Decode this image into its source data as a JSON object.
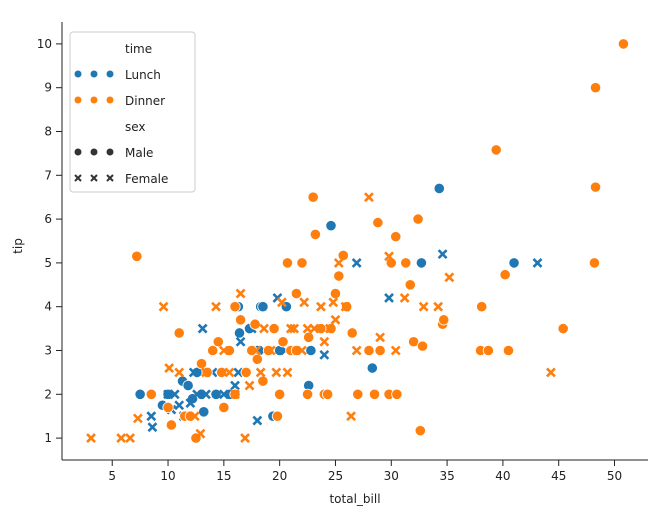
{
  "chart_data": {
    "type": "scatter",
    "xlabel": "total_bill",
    "ylabel": "tip",
    "xlim": [
      0.5,
      53
    ],
    "ylim": [
      0.5,
      10.5
    ],
    "xticks": [
      5,
      10,
      15,
      20,
      25,
      30,
      35,
      40,
      45,
      50
    ],
    "yticks": [
      1,
      2,
      3,
      4,
      5,
      6,
      7,
      8,
      9,
      10
    ],
    "grid": false,
    "legend": {
      "placement": "top-left",
      "hue_title": "time",
      "style_title": "sex",
      "hue_entries": [
        {
          "label": "Lunch",
          "color": "#1f77b4"
        },
        {
          "label": "Dinner",
          "color": "#ff7f0e"
        }
      ],
      "style_entries": [
        {
          "label": "Male",
          "marker": "circle",
          "color": "#333333"
        },
        {
          "label": "Female",
          "marker": "x",
          "color": "#333333"
        }
      ]
    },
    "colors": {
      "Lunch": "#1f77b4",
      "Dinner": "#ff7f0e"
    },
    "series": [
      {
        "name": "Lunch, Male",
        "time": "Lunch",
        "sex": "Male",
        "marker": "circle",
        "points": [
          [
            7.5,
            2.0
          ],
          [
            9.5,
            1.75
          ],
          [
            11.3,
            2.3
          ],
          [
            11.8,
            2.2
          ],
          [
            12.2,
            1.9
          ],
          [
            12.6,
            2.5
          ],
          [
            13.2,
            1.6
          ],
          [
            14.3,
            2.0
          ],
          [
            16.3,
            4.0
          ],
          [
            16.4,
            3.4
          ],
          [
            17.3,
            3.5
          ],
          [
            18.3,
            4.0
          ],
          [
            18.5,
            4.0
          ],
          [
            19.4,
            1.5
          ],
          [
            20.0,
            3.0
          ],
          [
            20.6,
            4.0
          ],
          [
            22.6,
            2.2
          ],
          [
            22.8,
            3.0
          ],
          [
            24.6,
            5.85
          ],
          [
            28.3,
            2.6
          ],
          [
            32.7,
            5.0
          ],
          [
            34.3,
            6.7
          ],
          [
            41.0,
            5.0
          ],
          [
            10.0,
            2.0
          ],
          [
            13.0,
            2.0
          ],
          [
            15.5,
            2.0
          ],
          [
            18.0,
            3.0
          ]
        ]
      },
      {
        "name": "Lunch, Female",
        "time": "Lunch",
        "sex": "Female",
        "marker": "x",
        "points": [
          [
            8.5,
            1.5
          ],
          [
            8.6,
            1.25
          ],
          [
            10.0,
            2.0
          ],
          [
            10.3,
            1.65
          ],
          [
            10.6,
            2.0
          ],
          [
            11.0,
            1.75
          ],
          [
            11.4,
            1.5
          ],
          [
            12.0,
            1.8
          ],
          [
            12.6,
            2.0
          ],
          [
            13.1,
            3.5
          ],
          [
            13.4,
            2.0
          ],
          [
            14.0,
            2.5
          ],
          [
            15.0,
            2.0
          ],
          [
            16.0,
            2.2
          ],
          [
            16.3,
            2.5
          ],
          [
            16.5,
            3.2
          ],
          [
            17.5,
            3.5
          ],
          [
            18.0,
            1.4
          ],
          [
            19.8,
            4.2
          ],
          [
            20.5,
            3.0
          ],
          [
            24.0,
            2.9
          ],
          [
            26.9,
            5.0
          ],
          [
            29.8,
            4.2
          ],
          [
            34.6,
            5.2
          ],
          [
            43.1,
            5.0
          ],
          [
            12.3,
            2.5
          ],
          [
            18.6,
            3.0
          ]
        ]
      },
      {
        "name": "Dinner, Male",
        "time": "Dinner",
        "sex": "Male",
        "marker": "circle",
        "points": [
          [
            7.2,
            5.15
          ],
          [
            8.5,
            2.0
          ],
          [
            10.0,
            1.7
          ],
          [
            10.3,
            1.3
          ],
          [
            11.0,
            3.4
          ],
          [
            11.5,
            1.5
          ],
          [
            12.0,
            1.5
          ],
          [
            12.5,
            1.0
          ],
          [
            13.0,
            2.7
          ],
          [
            13.5,
            2.5
          ],
          [
            14.0,
            3.0
          ],
          [
            14.5,
            3.2
          ],
          [
            15.0,
            1.7
          ],
          [
            15.5,
            3.0
          ],
          [
            16.0,
            2.0
          ],
          [
            16.5,
            3.7
          ],
          [
            17.0,
            2.5
          ],
          [
            17.5,
            3.0
          ],
          [
            18.0,
            2.8
          ],
          [
            18.5,
            2.3
          ],
          [
            19.0,
            3.0
          ],
          [
            19.5,
            3.5
          ],
          [
            20.0,
            2.0
          ],
          [
            20.3,
            3.2
          ],
          [
            20.7,
            5.0
          ],
          [
            21.0,
            3.0
          ],
          [
            21.5,
            4.3
          ],
          [
            22.0,
            5.0
          ],
          [
            22.5,
            2.0
          ],
          [
            23.0,
            6.5
          ],
          [
            23.2,
            5.65
          ],
          [
            23.7,
            3.5
          ],
          [
            24.0,
            2.0
          ],
          [
            24.3,
            2.0
          ],
          [
            24.6,
            3.5
          ],
          [
            25.0,
            4.3
          ],
          [
            25.3,
            4.7
          ],
          [
            25.7,
            5.17
          ],
          [
            26.5,
            3.4
          ],
          [
            27.0,
            2.0
          ],
          [
            28.0,
            3.0
          ],
          [
            28.5,
            2.0
          ],
          [
            28.8,
            5.92
          ],
          [
            29.0,
            3.0
          ],
          [
            29.8,
            2.0
          ],
          [
            30.0,
            5.0
          ],
          [
            30.5,
            2.0
          ],
          [
            30.4,
            5.6
          ],
          [
            31.3,
            5.0
          ],
          [
            31.7,
            4.5
          ],
          [
            32.0,
            3.2
          ],
          [
            32.4,
            6.0
          ],
          [
            32.6,
            1.17
          ],
          [
            32.8,
            3.1
          ],
          [
            34.6,
            3.6
          ],
          [
            34.7,
            3.7
          ],
          [
            38.0,
            3.0
          ],
          [
            38.1,
            4.0
          ],
          [
            38.7,
            3.0
          ],
          [
            39.4,
            7.58
          ],
          [
            40.2,
            4.73
          ],
          [
            40.5,
            3.0
          ],
          [
            45.4,
            3.5
          ],
          [
            48.2,
            5.0
          ],
          [
            48.3,
            6.73
          ],
          [
            48.3,
            9.0
          ],
          [
            50.8,
            10.0
          ],
          [
            16.0,
            4.0
          ],
          [
            19.8,
            1.5
          ],
          [
            21.5,
            3.0
          ],
          [
            22.6,
            3.3
          ],
          [
            17.8,
            3.6
          ],
          [
            14.8,
            2.5
          ],
          [
            26.0,
            4.0
          ]
        ]
      },
      {
        "name": "Dinner, Female",
        "time": "Dinner",
        "sex": "Female",
        "marker": "x",
        "points": [
          [
            3.1,
            1.0
          ],
          [
            5.8,
            1.0
          ],
          [
            6.6,
            1.0
          ],
          [
            7.3,
            1.45
          ],
          [
            9.6,
            4.0
          ],
          [
            10.1,
            2.6
          ],
          [
            11.0,
            2.5
          ],
          [
            12.4,
            1.5
          ],
          [
            12.9,
            1.1
          ],
          [
            13.4,
            2.5
          ],
          [
            14.3,
            4.0
          ],
          [
            15.0,
            3.0
          ],
          [
            15.5,
            2.5
          ],
          [
            16.0,
            2.0
          ],
          [
            16.5,
            4.3
          ],
          [
            16.9,
            1.0
          ],
          [
            17.3,
            2.2
          ],
          [
            17.9,
            3.0
          ],
          [
            18.3,
            2.5
          ],
          [
            18.6,
            3.5
          ],
          [
            19.2,
            3.0
          ],
          [
            19.7,
            2.5
          ],
          [
            20.2,
            4.1
          ],
          [
            20.7,
            2.5
          ],
          [
            21.0,
            3.5
          ],
          [
            21.3,
            3.5
          ],
          [
            22.0,
            3.0
          ],
          [
            22.5,
            3.5
          ],
          [
            23.1,
            3.5
          ],
          [
            23.7,
            4.0
          ],
          [
            24.0,
            3.2
          ],
          [
            24.5,
            3.5
          ],
          [
            25.0,
            3.7
          ],
          [
            25.3,
            5.0
          ],
          [
            25.9,
            4.0
          ],
          [
            26.4,
            1.5
          ],
          [
            26.9,
            3.0
          ],
          [
            28.0,
            6.5
          ],
          [
            29.0,
            3.3
          ],
          [
            29.8,
            5.15
          ],
          [
            30.4,
            3.0
          ],
          [
            31.2,
            4.2
          ],
          [
            32.9,
            4.0
          ],
          [
            34.2,
            4.0
          ],
          [
            35.2,
            4.67
          ],
          [
            44.3,
            2.5
          ],
          [
            24.8,
            4.1
          ],
          [
            22.2,
            4.1
          ]
        ]
      }
    ]
  }
}
